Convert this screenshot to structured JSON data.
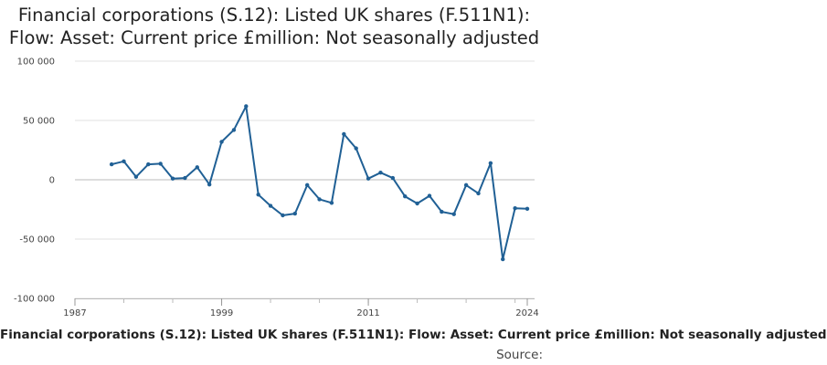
{
  "chart_data": {
    "type": "line",
    "title_lines": [
      "Financial corporations (S.12): Listed UK shares (F.511N1):",
      "Flow: Asset: Current price £million: Not seasonally adjusted"
    ],
    "xlabel": "Financial corporations (S.12): Listed UK shares (F.511N1): Flow: Asset: Current price £million: Not seasonally adjusted",
    "source_label": "Source: ",
    "ylabel": "",
    "xlim": [
      1987,
      2024
    ],
    "ylim": [
      -100000,
      100000
    ],
    "x_ticks": [
      1987,
      1999,
      2011,
      2024
    ],
    "y_ticks": [
      100000,
      50000,
      0,
      -50000,
      -100000
    ],
    "y_tick_labels": [
      "100 000",
      "50 000",
      "0",
      "-50 000",
      "-100 000"
    ],
    "line_color": "#206095",
    "grid": true,
    "series": [
      {
        "name": "Listed UK shares (F.511N1)",
        "x": [
          1990,
          1991,
          1992,
          1993,
          1994,
          1995,
          1996,
          1997,
          1998,
          1999,
          2000,
          2001,
          2002,
          2003,
          2004,
          2005,
          2006,
          2007,
          2008,
          2009,
          2010,
          2011,
          2012,
          2013,
          2014,
          2015,
          2016,
          2017,
          2018,
          2019,
          2020,
          2021,
          2022,
          2023,
          2024
        ],
        "values": [
          13000,
          15500,
          2500,
          13000,
          13500,
          1000,
          1500,
          10500,
          -4000,
          32000,
          42000,
          62000,
          -12500,
          -22000,
          -30000,
          -28500,
          -4500,
          -16500,
          -19500,
          38500,
          26500,
          1000,
          6000,
          1500,
          -14000,
          -20000,
          -13500,
          -27000,
          -29000,
          -4500,
          -11500,
          14000,
          -67000,
          -24000,
          -24500
        ]
      }
    ]
  }
}
